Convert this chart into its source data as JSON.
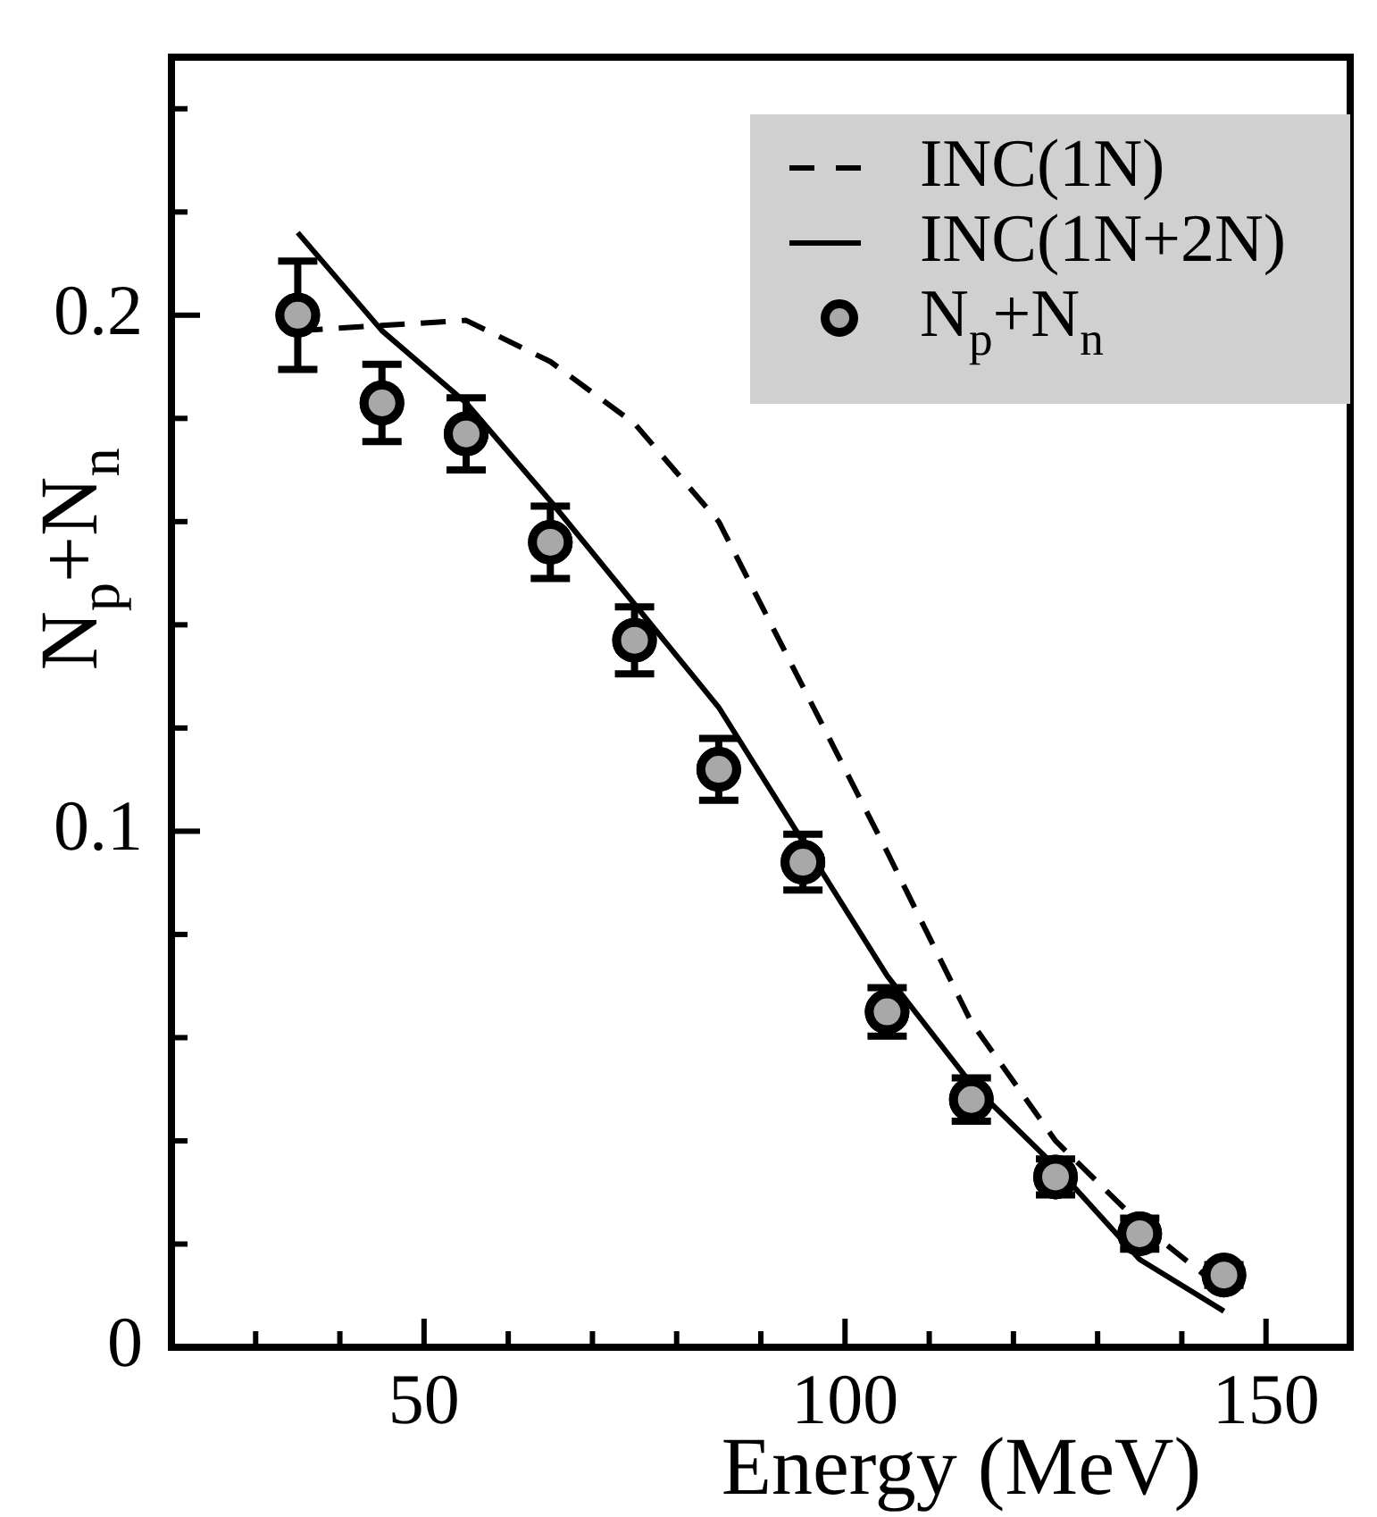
{
  "chart_data": {
    "type": "line",
    "xlabel": "Energy (MeV)",
    "ylabel": "N$_{p}$+N$_{n}$",
    "xlim": [
      20,
      160
    ],
    "ylim": [
      0,
      0.25
    ],
    "xticks": [
      {
        "value": 30,
        "label": null
      },
      {
        "value": 40,
        "label": null
      },
      50,
      {
        "value": 60,
        "label": null
      },
      {
        "value": 70,
        "label": null
      },
      {
        "value": 80,
        "label": null
      },
      {
        "value": 90,
        "label": null
      },
      100,
      {
        "value": 110,
        "label": null
      },
      {
        "value": 120,
        "label": null
      },
      {
        "value": 130,
        "label": null
      },
      {
        "value": 140,
        "label": null
      },
      150
    ],
    "yticks": [
      0,
      {
        "value": 0.02,
        "label": null
      },
      {
        "value": 0.04,
        "label": null
      },
      {
        "value": 0.06,
        "label": null
      },
      {
        "value": 0.08,
        "label": null
      },
      0.1,
      {
        "value": 0.12,
        "label": null
      },
      {
        "value": 0.14,
        "label": null
      },
      {
        "value": 0.16,
        "label": null
      },
      {
        "value": 0.18,
        "label": null
      },
      0.2,
      {
        "value": 0.22,
        "label": null
      },
      {
        "value": 0.24,
        "label": null
      }
    ],
    "grid": false,
    "legend": "top right",
    "series": [
      {
        "name": "INC(1N)",
        "type": "line",
        "line_style": "dashed",
        "marker": "none",
        "color": "#000000",
        "x": [
          35,
          45,
          55,
          65,
          75,
          85,
          95,
          105,
          115,
          125,
          135,
          145
        ],
        "values": [
          0.197,
          0.198,
          0.199,
          0.191,
          0.179,
          0.16,
          0.128,
          0.096,
          0.063,
          0.04,
          0.024,
          0.011
        ]
      },
      {
        "name": "INC(1N+2N)",
        "type": "line",
        "line_style": "solid",
        "marker": "none",
        "color": "#000000",
        "x": [
          35,
          45,
          55,
          65,
          75,
          85,
          95,
          105,
          115,
          125,
          135,
          145
        ],
        "values": [
          0.216,
          0.197,
          0.183,
          0.164,
          0.144,
          0.124,
          0.098,
          0.072,
          0.051,
          0.035,
          0.017,
          0.007
        ]
      },
      {
        "name": "N$_{p}$+N$_{n}$",
        "type": "scatter",
        "marker": "circle",
        "color": "#a8a8a8",
        "x": [
          35,
          45,
          55,
          65,
          75,
          85,
          95,
          105,
          115,
          125,
          135,
          145
        ],
        "values": [
          0.2,
          0.183,
          0.177,
          0.156,
          0.137,
          0.112,
          0.094,
          0.065,
          0.048,
          0.033,
          0.022,
          0.014
        ],
        "errors": [
          0.0105,
          0.0075,
          0.007,
          0.007,
          0.0065,
          0.006,
          0.0054,
          0.0047,
          0.0042,
          0.0035,
          0.003,
          0.002
        ]
      }
    ]
  }
}
